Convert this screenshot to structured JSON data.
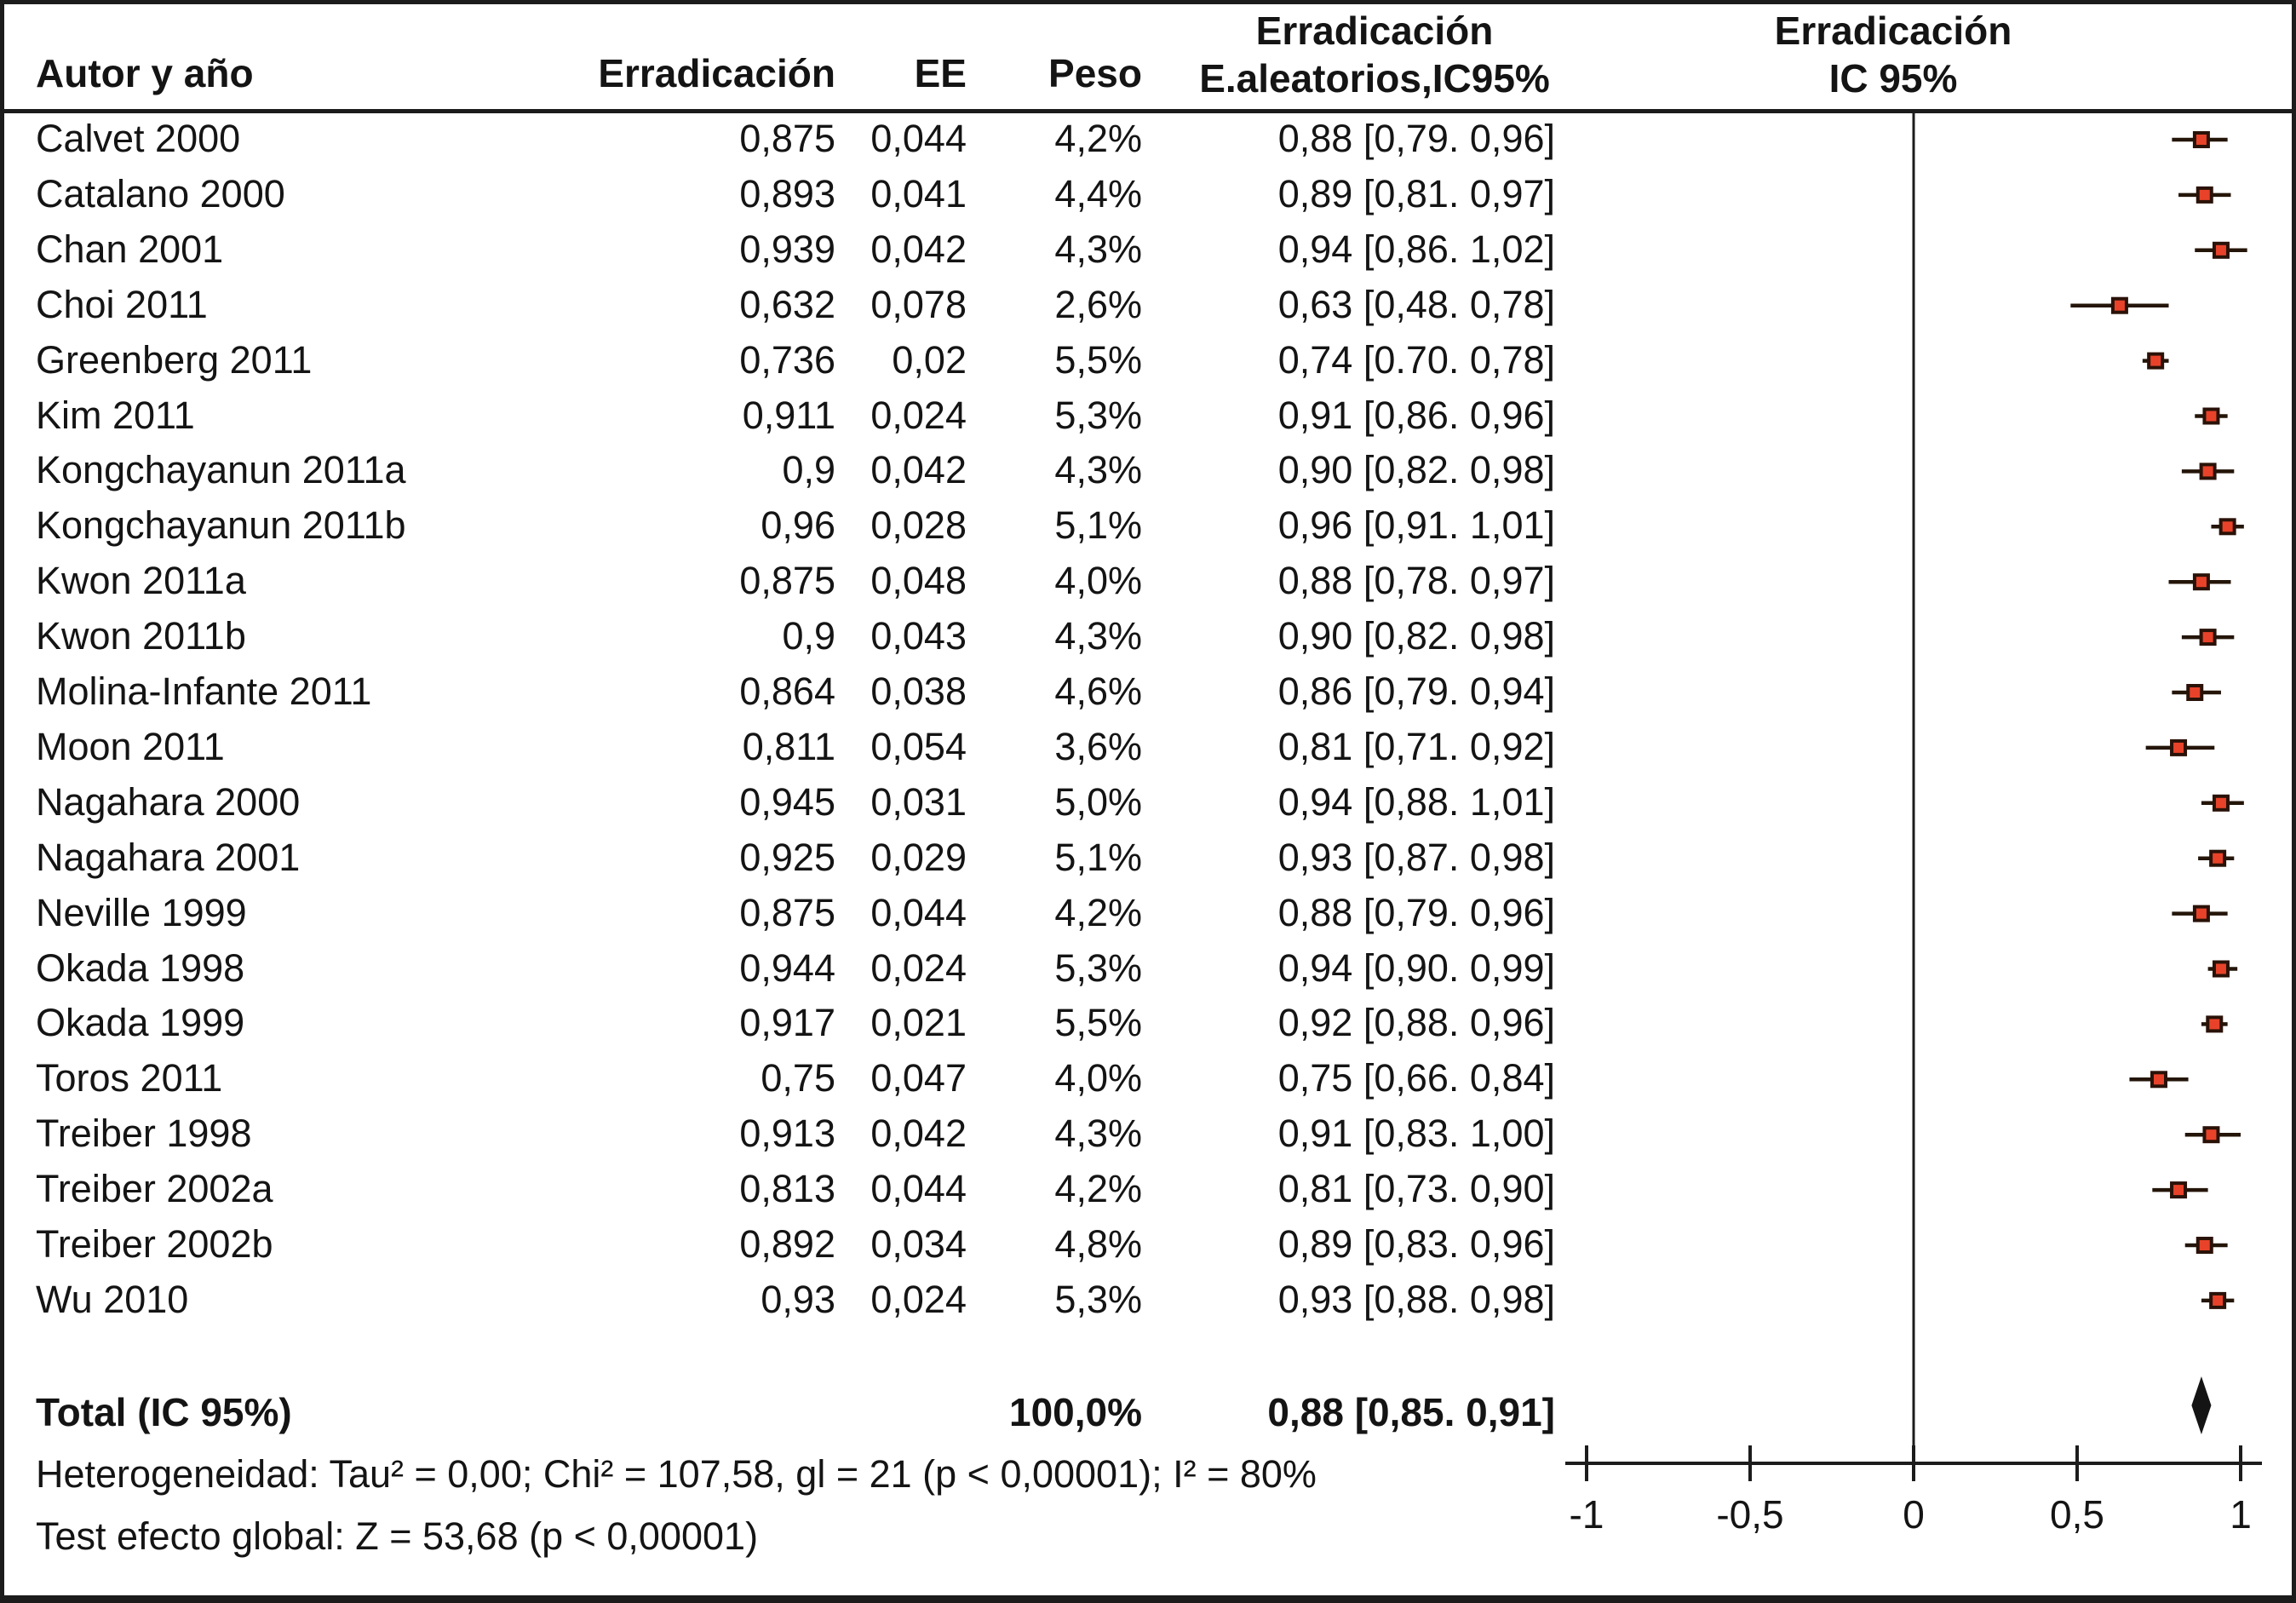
{
  "figure": {
    "header": {
      "author": "Autor y año",
      "eradication": "Erradicación",
      "ee": "EE",
      "weight": "Peso",
      "ci_line1": "Erradicación",
      "ci_line2": "E.aleatorios,IC95%",
      "plot_line1": "Erradicación",
      "plot_line2": "IC 95%"
    },
    "totals": {
      "label": "Total (IC 95%)",
      "weight": "100,0%",
      "ci_text": "0,88 [0,85. 0,91]"
    },
    "footer": {
      "heterogeneity": "Heterogeneidad: Tau² = 0,00; Chi² = 107,58, gl = 21 (p < 0,00001); I² = 80%",
      "global_test": "Test efecto global: Z = 53,68 (p < 0,00001)"
    }
  },
  "chart_data": {
    "type": "scatter",
    "subtype": "forest-plot",
    "title": "Erradicación IC 95%",
    "xlabel": "",
    "ylabel": "",
    "xlim": [
      -1,
      1
    ],
    "grid": false,
    "legend_position": "none",
    "x_ticks": [
      {
        "label": "-1",
        "value": -1
      },
      {
        "label": "-0,5",
        "value": -0.5
      },
      {
        "label": "0",
        "value": 0
      },
      {
        "label": "0,5",
        "value": 0.5
      },
      {
        "label": "1",
        "value": 1
      }
    ],
    "studies": [
      {
        "author": "Calvet 2000",
        "eradication": "0,875",
        "ee": "0,044",
        "weight": "4,2%",
        "ci_text": "0,88 [0,79. 0,96]",
        "value": 0.88,
        "lo": 0.79,
        "hi": 0.96
      },
      {
        "author": "Catalano 2000",
        "eradication": "0,893",
        "ee": "0,041",
        "weight": "4,4%",
        "ci_text": "0,89 [0,81. 0,97]",
        "value": 0.89,
        "lo": 0.81,
        "hi": 0.97
      },
      {
        "author": "Chan 2001",
        "eradication": "0,939",
        "ee": "0,042",
        "weight": "4,3%",
        "ci_text": "0,94 [0,86. 1,02]",
        "value": 0.94,
        "lo": 0.86,
        "hi": 1.02
      },
      {
        "author": "Choi 2011",
        "eradication": "0,632",
        "ee": "0,078",
        "weight": "2,6%",
        "ci_text": "0,63 [0,48. 0,78]",
        "value": 0.63,
        "lo": 0.48,
        "hi": 0.78
      },
      {
        "author": "Greenberg 2011",
        "eradication": "0,736",
        "ee": "0,02",
        "weight": "5,5%",
        "ci_text": "0,74 [0.70. 0,78]",
        "value": 0.74,
        "lo": 0.7,
        "hi": 0.78
      },
      {
        "author": "Kim 2011",
        "eradication": "0,911",
        "ee": "0,024",
        "weight": "5,3%",
        "ci_text": "0,91 [0,86. 0,96]",
        "value": 0.91,
        "lo": 0.86,
        "hi": 0.96
      },
      {
        "author": "Kongchayanun 2011a",
        "eradication": "0,9",
        "ee": "0,042",
        "weight": "4,3%",
        "ci_text": "0,90 [0,82. 0,98]",
        "value": 0.9,
        "lo": 0.82,
        "hi": 0.98
      },
      {
        "author": "Kongchayanun 2011b",
        "eradication": "0,96",
        "ee": "0,028",
        "weight": "5,1%",
        "ci_text": "0,96 [0,91. 1,01]",
        "value": 0.96,
        "lo": 0.91,
        "hi": 1.01
      },
      {
        "author": "Kwon 2011a",
        "eradication": "0,875",
        "ee": "0,048",
        "weight": "4,0%",
        "ci_text": "0,88 [0,78. 0,97]",
        "value": 0.88,
        "lo": 0.78,
        "hi": 0.97
      },
      {
        "author": "Kwon 2011b",
        "eradication": "0,9",
        "ee": "0,043",
        "weight": "4,3%",
        "ci_text": "0,90 [0,82. 0,98]",
        "value": 0.9,
        "lo": 0.82,
        "hi": 0.98
      },
      {
        "author": "Molina-Infante 2011",
        "eradication": "0,864",
        "ee": "0,038",
        "weight": "4,6%",
        "ci_text": "0,86 [0,79. 0,94]",
        "value": 0.86,
        "lo": 0.79,
        "hi": 0.94
      },
      {
        "author": "Moon 2011",
        "eradication": "0,811",
        "ee": "0,054",
        "weight": "3,6%",
        "ci_text": "0,81 [0,71. 0,92]",
        "value": 0.81,
        "lo": 0.71,
        "hi": 0.92
      },
      {
        "author": "Nagahara 2000",
        "eradication": "0,945",
        "ee": "0,031",
        "weight": "5,0%",
        "ci_text": "0,94 [0,88. 1,01]",
        "value": 0.94,
        "lo": 0.88,
        "hi": 1.01
      },
      {
        "author": "Nagahara 2001",
        "eradication": "0,925",
        "ee": "0,029",
        "weight": "5,1%",
        "ci_text": "0,93 [0,87. 0,98]",
        "value": 0.93,
        "lo": 0.87,
        "hi": 0.98
      },
      {
        "author": "Neville 1999",
        "eradication": "0,875",
        "ee": "0,044",
        "weight": "4,2%",
        "ci_text": "0,88 [0,79. 0,96]",
        "value": 0.88,
        "lo": 0.79,
        "hi": 0.96
      },
      {
        "author": "Okada 1998",
        "eradication": "0,944",
        "ee": "0,024",
        "weight": "5,3%",
        "ci_text": "0,94 [0,90. 0,99]",
        "value": 0.94,
        "lo": 0.9,
        "hi": 0.99
      },
      {
        "author": "Okada 1999",
        "eradication": "0,917",
        "ee": "0,021",
        "weight": "5,5%",
        "ci_text": "0,92 [0,88. 0,96]",
        "value": 0.92,
        "lo": 0.88,
        "hi": 0.96
      },
      {
        "author": "Toros 2011",
        "eradication": "0,75",
        "ee": "0,047",
        "weight": "4,0%",
        "ci_text": "0,75 [0,66. 0,84]",
        "value": 0.75,
        "lo": 0.66,
        "hi": 0.84
      },
      {
        "author": "Treiber 1998",
        "eradication": "0,913",
        "ee": "0,042",
        "weight": "4,3%",
        "ci_text": "0,91 [0,83. 1,00]",
        "value": 0.91,
        "lo": 0.83,
        "hi": 1.0
      },
      {
        "author": "Treiber 2002a",
        "eradication": "0,813",
        "ee": "0,044",
        "weight": "4,2%",
        "ci_text": "0,81 [0,73. 0,90]",
        "value": 0.81,
        "lo": 0.73,
        "hi": 0.9
      },
      {
        "author": "Treiber 2002b",
        "eradication": "0,892",
        "ee": "0,034",
        "weight": "4,8%",
        "ci_text": "0,89 [0,83. 0,96]",
        "value": 0.89,
        "lo": 0.83,
        "hi": 0.96
      },
      {
        "author": "Wu 2010",
        "eradication": "0,93",
        "ee": "0,024",
        "weight": "5,3%",
        "ci_text": "0,93 [0,88. 0,98]",
        "value": 0.93,
        "lo": 0.88,
        "hi": 0.98
      }
    ],
    "total": {
      "value": 0.88,
      "lo": 0.85,
      "hi": 0.91
    },
    "colors": {
      "marker_fill": "#e8432a",
      "marker_stroke": "#2a1208",
      "line": "#1c1c1c"
    }
  }
}
